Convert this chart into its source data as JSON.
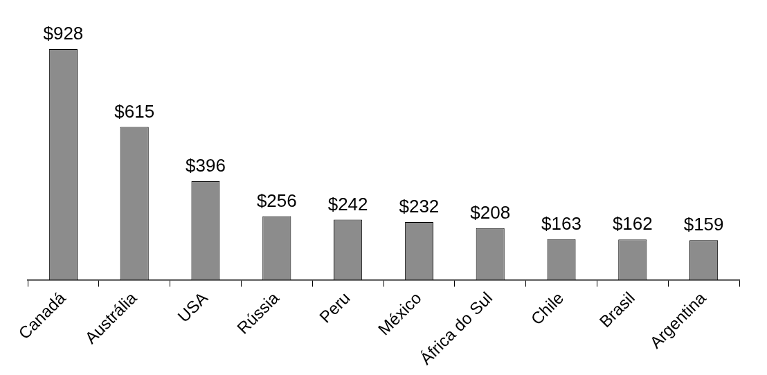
{
  "chart_data": {
    "type": "bar",
    "categories": [
      "Canadá",
      "Austrália",
      "USA",
      "Rússia",
      "Peru",
      "México",
      "África do Sul",
      "Chile",
      "Brasil",
      "Argentina"
    ],
    "values": [
      928,
      615,
      396,
      256,
      242,
      232,
      208,
      163,
      162,
      159
    ],
    "value_labels": [
      "$928",
      "$615",
      "$396",
      "$256",
      "$242",
      "$232",
      "$208",
      "$163",
      "$162",
      "$159"
    ],
    "color": "#8c8c8c",
    "grid": false,
    "legend": false
  }
}
